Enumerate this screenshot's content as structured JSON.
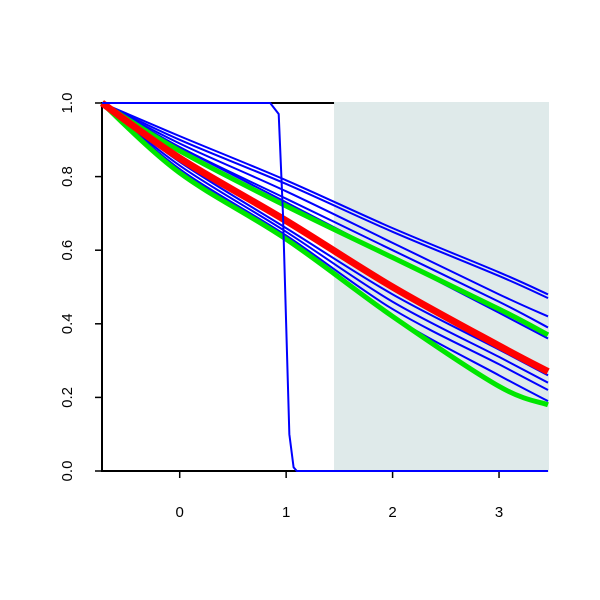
{
  "chart_data": {
    "type": "line",
    "xlim": [
      -0.73,
      3.46
    ],
    "ylim": [
      0,
      1
    ],
    "xticks": [
      0,
      1,
      2,
      3
    ],
    "yticks": [
      {
        "value": 0,
        "label": "0.0"
      },
      0.2,
      0.4,
      0.6,
      0.8,
      {
        "value": 1,
        "label": "1.0"
      }
    ],
    "shade": {
      "from": 1.45,
      "color": "#dfeaea"
    },
    "x": [
      -0.73,
      0,
      1,
      2,
      3,
      3.46
    ],
    "series": [
      {
        "color": "#0000ff",
        "width": 2,
        "values": [
          1,
          0.91,
          0.79,
          0.66,
          0.54,
          0.48
        ]
      },
      {
        "color": "#0000ff",
        "width": 2,
        "values": [
          1,
          0.9,
          0.78,
          0.65,
          0.53,
          0.47
        ]
      },
      {
        "color": "#0000ff",
        "width": 2,
        "values": [
          1,
          0.89,
          0.76,
          0.62,
          0.48,
          0.42
        ]
      },
      {
        "color": "#0000ff",
        "width": 2,
        "values": [
          1,
          0.88,
          0.74,
          0.6,
          0.46,
          0.39
        ]
      },
      {
        "color": "#0000ff",
        "width": 2,
        "values": [
          1,
          0.88,
          0.73,
          0.58,
          0.43,
          0.36
        ]
      },
      {
        "color": "#0000ff",
        "width": 2,
        "values": [
          1,
          0.84,
          0.66,
          0.48,
          0.33,
          0.26
        ]
      },
      {
        "color": "#0000ff",
        "width": 2,
        "values": [
          1,
          0.83,
          0.65,
          0.46,
          0.31,
          0.24
        ]
      },
      {
        "color": "#0000ff",
        "width": 2,
        "values": [
          1,
          0.82,
          0.64,
          0.44,
          0.29,
          0.22
        ]
      },
      {
        "color": "#0000ff",
        "width": 2,
        "values": [
          1,
          0.82,
          0.63,
          0.42,
          0.26,
          0.19
        ]
      },
      {
        "color": "#00e600",
        "width": 5,
        "values": [
          1,
          0.87,
          0.72,
          0.58,
          0.44,
          0.37
        ]
      },
      {
        "color": "#00e600",
        "width": 5,
        "values": [
          1,
          0.81,
          0.63,
          0.42,
          0.23,
          0.18
        ]
      },
      {
        "color": "#ff0000",
        "width": 7,
        "values": [
          1,
          0.85,
          0.68,
          0.5,
          0.34,
          0.27
        ]
      },
      {
        "color": "#0000ff",
        "width": 2,
        "x": [
          -0.73,
          0.85,
          0.93,
          0.97,
          1.0,
          1.03,
          1.07,
          1.1,
          3.46
        ],
        "values": [
          1,
          1,
          0.97,
          0.7,
          0.4,
          0.1,
          0.01,
          0,
          0
        ]
      }
    ]
  }
}
